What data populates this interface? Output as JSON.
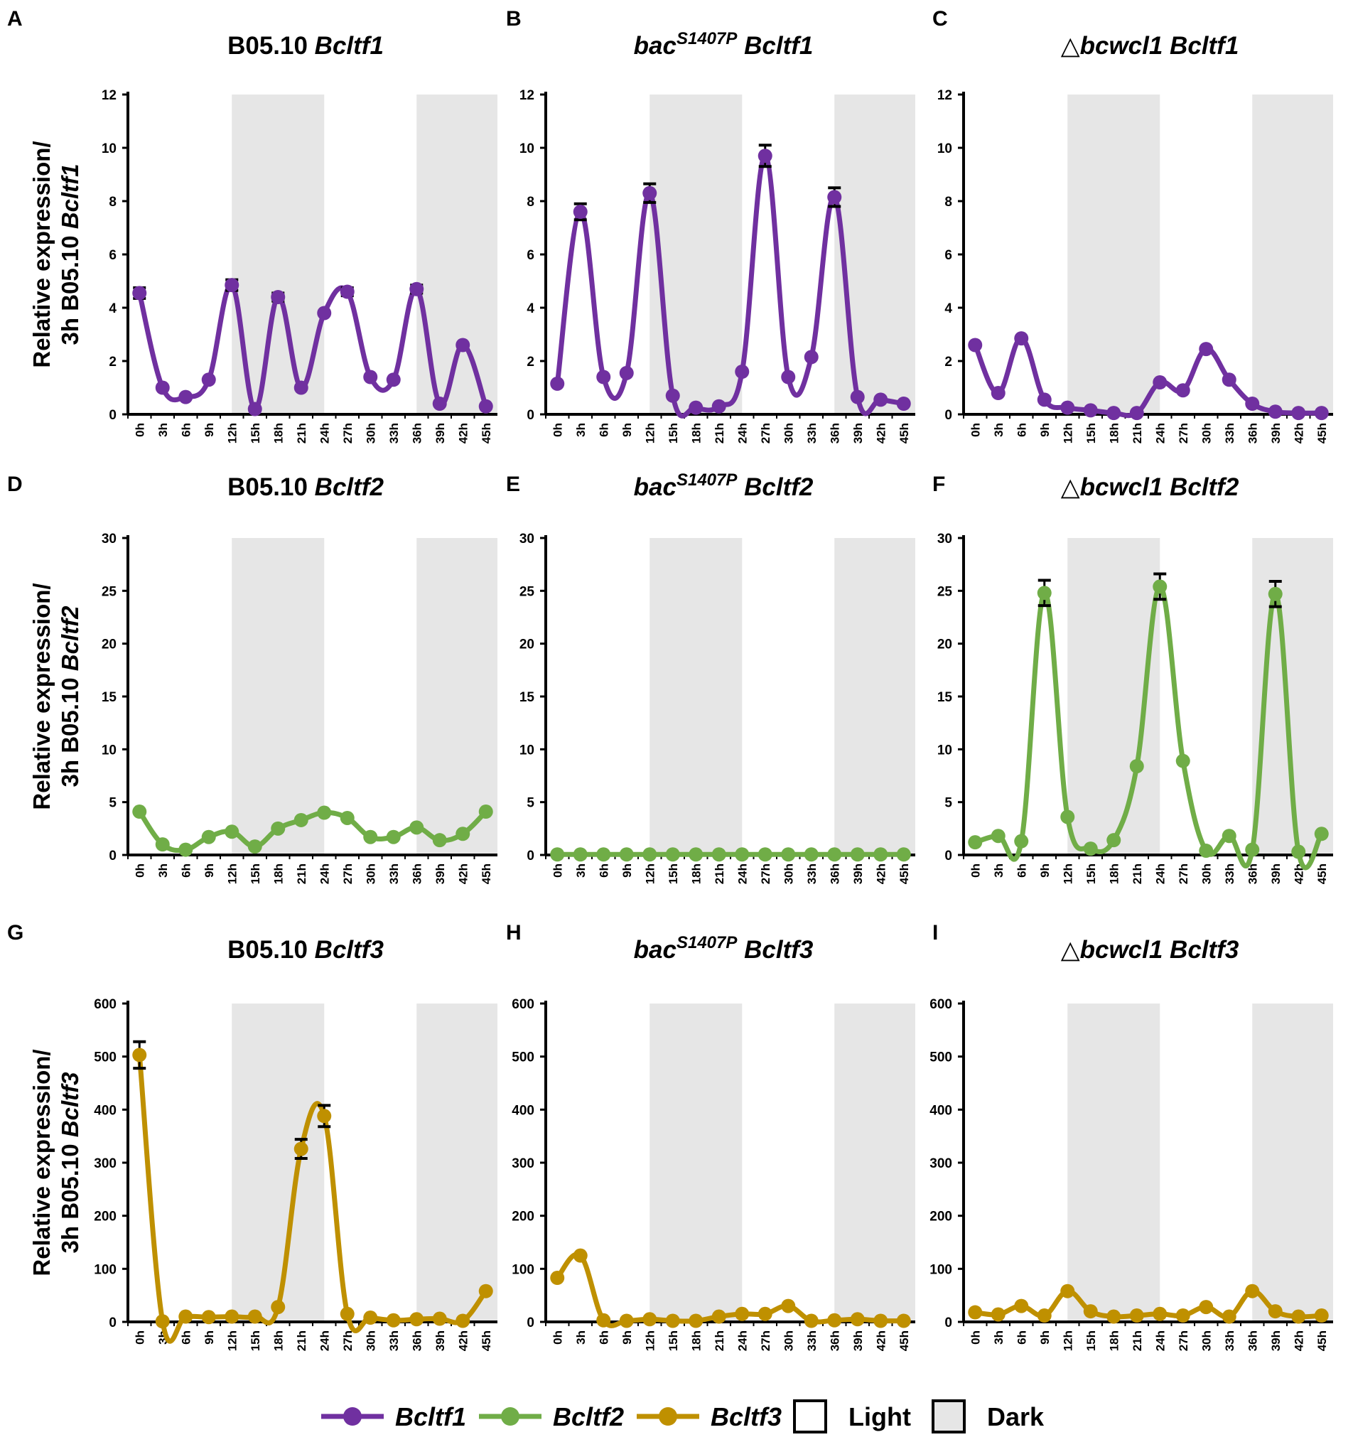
{
  "chart_data": [
    {
      "id": "A",
      "type": "line",
      "panel_label": "A",
      "title_main": "B05.10",
      "title_gene": "Bcltf1",
      "title_sup": "",
      "gene": "Bcltf1",
      "color": "#7030a0",
      "ylim": [
        0,
        12
      ],
      "yticks": [
        0,
        2,
        4,
        6,
        8,
        10,
        12
      ],
      "ylabel_line1": "Relative expression/",
      "ylabel_line2_plain": "3h B05.10",
      "ylabel_line2_gene": "Bcltf1",
      "x": [
        "0h",
        "3h",
        "6h",
        "9h",
        "12h",
        "15h",
        "18h",
        "21h",
        "24h",
        "27h",
        "30h",
        "33h",
        "36h",
        "39h",
        "42h",
        "45h"
      ],
      "values": [
        4.55,
        1.0,
        0.65,
        1.3,
        4.85,
        0.2,
        4.4,
        1.0,
        3.8,
        4.6,
        1.4,
        1.3,
        4.7,
        0.4,
        2.6,
        0.3
      ],
      "errors": [
        0.2,
        0,
        0,
        0,
        0.2,
        0,
        0.15,
        0,
        0,
        0.15,
        0,
        0,
        0.15,
        0,
        0,
        0
      ],
      "dark_periods": [
        [
          12,
          24
        ],
        [
          36,
          45
        ]
      ]
    },
    {
      "id": "B",
      "type": "line",
      "panel_label": "B",
      "title_main": "bac",
      "title_gene": "Bcltf1",
      "title_sup": "S1407P",
      "gene": "Bcltf1",
      "color": "#7030a0",
      "ylim": [
        0,
        12
      ],
      "yticks": [
        0,
        2,
        4,
        6,
        8,
        10,
        12
      ],
      "x": [
        "0h",
        "3h",
        "6h",
        "9h",
        "12h",
        "15h",
        "18h",
        "21h",
        "24h",
        "27h",
        "30h",
        "33h",
        "36h",
        "39h",
        "42h",
        "45h"
      ],
      "values": [
        1.15,
        7.6,
        1.4,
        1.55,
        8.3,
        0.7,
        0.25,
        0.3,
        1.6,
        9.7,
        1.4,
        2.15,
        8.15,
        0.65,
        0.55,
        0.4
      ],
      "errors": [
        0,
        0.3,
        0,
        0,
        0.35,
        0,
        0,
        0,
        0,
        0.4,
        0,
        0,
        0.35,
        0,
        0,
        0
      ],
      "dark_periods": [
        [
          12,
          24
        ],
        [
          36,
          45
        ]
      ]
    },
    {
      "id": "C",
      "type": "line",
      "panel_label": "C",
      "title_main": "△",
      "title_gene": "bcwcl1 Bcltf1",
      "title_sup": "",
      "gene": "Bcltf1",
      "color": "#7030a0",
      "ylim": [
        0,
        12
      ],
      "yticks": [
        0,
        2,
        4,
        6,
        8,
        10,
        12
      ],
      "x": [
        "0h",
        "3h",
        "6h",
        "9h",
        "12h",
        "15h",
        "18h",
        "21h",
        "24h",
        "27h",
        "30h",
        "33h",
        "36h",
        "39h",
        "42h",
        "45h"
      ],
      "values": [
        2.6,
        0.8,
        2.85,
        0.55,
        0.25,
        0.15,
        0.05,
        0.05,
        1.2,
        0.9,
        2.45,
        1.3,
        0.4,
        0.1,
        0.05,
        0.05
      ],
      "errors": [
        0,
        0,
        0,
        0,
        0,
        0,
        0,
        0,
        0,
        0,
        0,
        0,
        0,
        0,
        0,
        0
      ],
      "dark_periods": [
        [
          12,
          24
        ],
        [
          36,
          45
        ]
      ]
    },
    {
      "id": "D",
      "type": "line",
      "panel_label": "D",
      "title_main": "B05.10",
      "title_gene": "Bcltf2",
      "title_sup": "",
      "gene": "Bcltf2",
      "color": "#70ad47",
      "ylim": [
        0,
        30
      ],
      "yticks": [
        0,
        5,
        10,
        15,
        20,
        25,
        30
      ],
      "ylabel_line1": "Relative expression/",
      "ylabel_line2_plain": "3h B05.10",
      "ylabel_line2_gene": "Bcltf2",
      "x": [
        "0h",
        "3h",
        "6h",
        "9h",
        "12h",
        "15h",
        "18h",
        "21h",
        "24h",
        "27h",
        "30h",
        "33h",
        "36h",
        "39h",
        "42h",
        "45h"
      ],
      "values": [
        4.1,
        1.0,
        0.5,
        1.7,
        2.2,
        0.8,
        2.5,
        3.3,
        4.0,
        3.5,
        1.7,
        1.7,
        2.6,
        1.4,
        2.0,
        4.1
      ],
      "errors": [
        0,
        0,
        0,
        0,
        0,
        0,
        0,
        0,
        0,
        0,
        0,
        0,
        0,
        0,
        0,
        0
      ],
      "dark_periods": [
        [
          12,
          24
        ],
        [
          36,
          45
        ]
      ]
    },
    {
      "id": "E",
      "type": "line",
      "panel_label": "E",
      "title_main": "bac",
      "title_gene": "Bcltf2",
      "title_sup": "S1407P",
      "gene": "Bcltf2",
      "color": "#70ad47",
      "ylim": [
        0,
        30
      ],
      "yticks": [
        0,
        5,
        10,
        15,
        20,
        25,
        30
      ],
      "x": [
        "0h",
        "3h",
        "6h",
        "9h",
        "12h",
        "15h",
        "18h",
        "21h",
        "24h",
        "27h",
        "30h",
        "33h",
        "36h",
        "39h",
        "42h",
        "45h"
      ],
      "values": [
        0.05,
        0.05,
        0.05,
        0.05,
        0.05,
        0.05,
        0.05,
        0.05,
        0.05,
        0.05,
        0.05,
        0.05,
        0.05,
        0.05,
        0.05,
        0.05
      ],
      "errors": [
        0,
        0,
        0,
        0,
        0,
        0,
        0,
        0,
        0,
        0,
        0,
        0,
        0,
        0,
        0,
        0
      ],
      "dark_periods": [
        [
          12,
          24
        ],
        [
          36,
          45
        ]
      ]
    },
    {
      "id": "F",
      "type": "line",
      "panel_label": "F",
      "title_main": "△",
      "title_gene": "bcwcl1 Bcltf2",
      "title_sup": "",
      "gene": "Bcltf2",
      "color": "#70ad47",
      "ylim": [
        0,
        30
      ],
      "yticks": [
        0,
        5,
        10,
        15,
        20,
        25,
        30
      ],
      "x": [
        "0h",
        "3h",
        "6h",
        "9h",
        "12h",
        "15h",
        "18h",
        "21h",
        "24h",
        "27h",
        "30h",
        "33h",
        "36h",
        "39h",
        "42h",
        "45h"
      ],
      "values": [
        1.2,
        1.8,
        1.3,
        24.8,
        3.6,
        0.6,
        1.4,
        8.4,
        25.4,
        8.9,
        0.4,
        1.8,
        0.5,
        24.7,
        0.3,
        2.0
      ],
      "errors": [
        0,
        0,
        0,
        1.2,
        0,
        0,
        0,
        0,
        1.2,
        0,
        0,
        0,
        0,
        1.2,
        0,
        0
      ],
      "dark_periods": [
        [
          12,
          24
        ],
        [
          36,
          45
        ]
      ]
    },
    {
      "id": "G",
      "type": "line",
      "panel_label": "G",
      "title_main": "B05.10",
      "title_gene": "Bcltf3",
      "title_sup": "",
      "gene": "Bcltf3",
      "color": "#bf9000",
      "ylim": [
        0,
        600
      ],
      "yticks": [
        0,
        100,
        200,
        300,
        400,
        500,
        600
      ],
      "ylabel_line1": "Relative expression/",
      "ylabel_line2_plain": "3h B05.10",
      "ylabel_line2_gene": "Bcltf3",
      "x": [
        "0h",
        "3h",
        "6h",
        "9h",
        "12h",
        "15h",
        "18h",
        "21h",
        "24h",
        "27h",
        "30h",
        "33h",
        "36h",
        "39h",
        "42h",
        "45h"
      ],
      "values": [
        503,
        1,
        10,
        9,
        10,
        10,
        28,
        326,
        388,
        15,
        8,
        3,
        5,
        6,
        2,
        58
      ],
      "errors": [
        25,
        0,
        0,
        0,
        0,
        0,
        0,
        18,
        20,
        0,
        0,
        0,
        0,
        0,
        0,
        0
      ],
      "dark_periods": [
        [
          12,
          24
        ],
        [
          36,
          45
        ]
      ]
    },
    {
      "id": "H",
      "type": "line",
      "panel_label": "H",
      "title_main": "bac",
      "title_gene": "Bcltf3",
      "title_sup": "S1407P",
      "gene": "Bcltf3",
      "color": "#bf9000",
      "ylim": [
        0,
        600
      ],
      "yticks": [
        0,
        100,
        200,
        300,
        400,
        500,
        600
      ],
      "x": [
        "0h",
        "3h",
        "6h",
        "9h",
        "12h",
        "15h",
        "18h",
        "21h",
        "24h",
        "27h",
        "30h",
        "33h",
        "36h",
        "39h",
        "42h",
        "45h"
      ],
      "values": [
        83,
        125,
        3,
        2,
        5,
        2,
        2,
        10,
        15,
        15,
        30,
        2,
        3,
        5,
        2,
        2
      ],
      "errors": [
        0,
        0,
        0,
        0,
        0,
        0,
        0,
        0,
        0,
        0,
        0,
        0,
        0,
        0,
        0,
        0
      ],
      "dark_periods": [
        [
          12,
          24
        ],
        [
          36,
          45
        ]
      ]
    },
    {
      "id": "I",
      "type": "line",
      "panel_label": "I",
      "title_main": "△",
      "title_gene": "bcwcl1 Bcltf3",
      "title_sup": "",
      "gene": "Bcltf3",
      "color": "#bf9000",
      "ylim": [
        0,
        600
      ],
      "yticks": [
        0,
        100,
        200,
        300,
        400,
        500,
        600
      ],
      "x": [
        "0h",
        "3h",
        "6h",
        "9h",
        "12h",
        "15h",
        "18h",
        "21h",
        "24h",
        "27h",
        "30h",
        "33h",
        "36h",
        "39h",
        "42h",
        "45h"
      ],
      "values": [
        18,
        14,
        30,
        12,
        58,
        20,
        10,
        12,
        15,
        12,
        28,
        10,
        58,
        20,
        10,
        12
      ],
      "errors": [
        0,
        0,
        0,
        0,
        0,
        0,
        0,
        0,
        0,
        0,
        0,
        0,
        0,
        0,
        0,
        0
      ],
      "dark_periods": [
        [
          12,
          24
        ],
        [
          36,
          45
        ]
      ]
    }
  ],
  "legend": [
    {
      "label": "Bcltf1",
      "color": "#7030a0",
      "kind": "series"
    },
    {
      "label": "Bcltf2",
      "color": "#70ad47",
      "kind": "series"
    },
    {
      "label": "Bcltf3",
      "color": "#bf9000",
      "kind": "series"
    },
    {
      "label": "Light",
      "color": "#ffffff",
      "kind": "box"
    },
    {
      "label": "Dark",
      "color": "#e6e6e6",
      "kind": "box"
    }
  ]
}
